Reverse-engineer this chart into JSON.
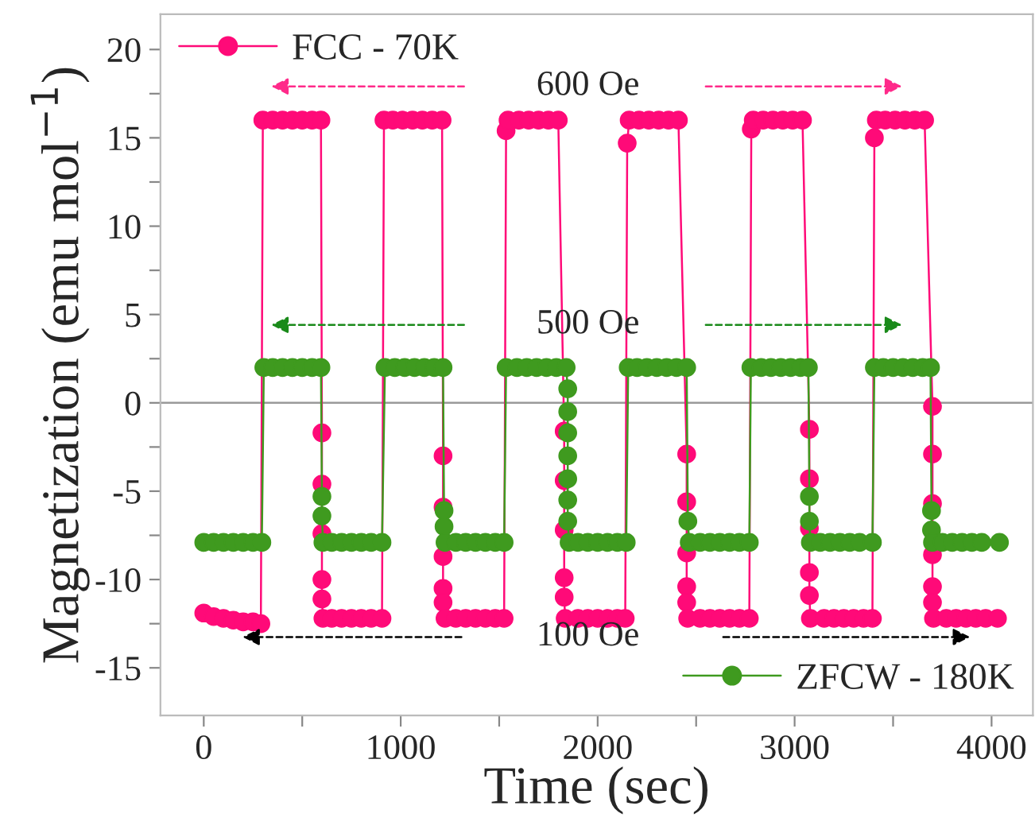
{
  "chart_data": {
    "type": "line",
    "xlabel": "Time (sec)",
    "ylabel": "Magnetization (emu mol$^{−1}$)",
    "xlim": [
      -220,
      4210
    ],
    "ylim": [
      -17.7,
      22
    ],
    "xticks": [
      0,
      {
        "value": 500,
        "label": null
      },
      1000,
      {
        "value": 1500,
        "label": null
      },
      2000,
      {
        "value": 2500,
        "label": null
      },
      3000,
      {
        "value": 3500,
        "label": null
      },
      4000
    ],
    "yticks": [
      -15,
      {
        "value": -12.5,
        "label": null
      },
      -10,
      {
        "value": -7.5,
        "label": null
      },
      -5,
      {
        "value": -2.5,
        "label": null
      },
      0,
      {
        "value": 2.5,
        "label": null
      },
      5,
      {
        "value": 7.5,
        "label": null
      },
      10,
      {
        "value": 12.5,
        "label": null
      },
      15,
      {
        "value": 17.5,
        "label": null
      },
      20
    ],
    "grid": false,
    "marker": "circle",
    "line_style": "solid",
    "legend": "top left",
    "ref_lines": [
      {
        "axis": "y",
        "value": 0,
        "color": "#9a9a9a"
      }
    ],
    "annotations": [
      "600 Oe",
      "500 Oe",
      "100 Oe"
    ],
    "series": [
      {
        "name": "FCC - 70K",
        "color": "#ff0a78",
        "x": [
          0,
          50,
          100,
          150,
          200,
          250,
          290,
          300,
          350,
          400,
          450,
          500,
          550,
          595,
          600,
          600,
          600,
          600,
          600,
          605,
          650,
          700,
          750,
          800,
          850,
          905,
          915,
          960,
          1010,
          1060,
          1110,
          1160,
          1210,
          1215,
          1215,
          1215,
          1215,
          1215,
          1225,
          1280,
          1330,
          1380,
          1430,
          1480,
          1525,
          1535,
          1545,
          1600,
          1650,
          1700,
          1750,
          1800,
          1830,
          1830,
          1830,
          1830,
          1830,
          1835,
          1900,
          1950,
          2000,
          2050,
          2100,
          2140,
          2150,
          2160,
          2210,
          2260,
          2310,
          2360,
          2410,
          2452,
          2452,
          2452,
          2452,
          2452,
          2457,
          2520,
          2570,
          2620,
          2670,
          2720,
          2770,
          2780,
          2790,
          2840,
          2890,
          2940,
          2990,
          3040,
          3075,
          3075,
          3075,
          3075,
          3075,
          3080,
          3150,
          3200,
          3250,
          3300,
          3350,
          3395,
          3405,
          3415,
          3460,
          3510,
          3560,
          3610,
          3660,
          3700,
          3700,
          3700,
          3700,
          3700,
          3700,
          3705,
          3770,
          3820,
          3870,
          3920,
          3970,
          4030
        ],
        "values": [
          -11.9,
          -12.1,
          -12.2,
          -12.3,
          -12.4,
          -12.4,
          -12.5,
          16,
          16,
          16,
          16,
          16,
          16,
          16,
          -1.7,
          -4.6,
          -7.4,
          -10,
          -11.1,
          -12.2,
          -12.2,
          -12.2,
          -12.2,
          -12.2,
          -12.2,
          -12.2,
          16,
          16,
          16,
          16,
          16,
          16,
          16,
          -3,
          -5.9,
          -8.7,
          -10.5,
          -11.3,
          -12.2,
          -12.2,
          -12.2,
          -12.2,
          -12.2,
          -12.2,
          -12.2,
          15.4,
          16,
          16,
          16,
          16,
          16,
          16,
          -1.6,
          -4.4,
          -7.2,
          -9.9,
          -11,
          -12.2,
          -12.2,
          -12.2,
          -12.2,
          -12.2,
          -12.2,
          -12.2,
          14.7,
          16,
          16,
          16,
          16,
          16,
          16,
          -2.9,
          -5.6,
          -8.5,
          -10.4,
          -11.3,
          -12.2,
          -12.2,
          -12.2,
          -12.2,
          -12.2,
          -12.2,
          -12.2,
          15.5,
          16,
          16,
          16,
          16,
          16,
          16,
          -1.5,
          -4.3,
          -7.1,
          -9.6,
          -10.9,
          -12.2,
          -12.2,
          -12.2,
          -12.2,
          -12.2,
          -12.2,
          -12.2,
          15,
          16,
          16,
          16,
          16,
          16,
          16,
          -0.2,
          -2.9,
          -5.7,
          -8.6,
          -10.4,
          -11.3,
          -12.2,
          -12.2,
          -12.2,
          -12.2,
          -12.2,
          -12.2,
          -12.2
        ]
      },
      {
        "name": "ZFCW - 180K",
        "color": "#3f9a1f",
        "x": [
          0,
          50,
          100,
          150,
          200,
          250,
          295,
          305,
          350,
          400,
          450,
          500,
          550,
          595,
          600,
          600,
          605,
          650,
          700,
          750,
          800,
          850,
          905,
          920,
          970,
          1020,
          1070,
          1120,
          1170,
          1215,
          1220,
          1220,
          1225,
          1280,
          1330,
          1380,
          1430,
          1480,
          1525,
          1535,
          1590,
          1640,
          1690,
          1740,
          1790,
          1840,
          1848,
          1848,
          1848,
          1848,
          1848,
          1848,
          1848,
          1855,
          1900,
          1950,
          2000,
          2050,
          2100,
          2145,
          2155,
          2200,
          2250,
          2300,
          2350,
          2400,
          2452,
          2458,
          2465,
          2520,
          2570,
          2620,
          2670,
          2720,
          2770,
          2778,
          2830,
          2880,
          2930,
          2980,
          3030,
          3070,
          3075,
          3075,
          3080,
          3130,
          3180,
          3230,
          3280,
          3330,
          3395,
          3405,
          3450,
          3500,
          3550,
          3600,
          3650,
          3690,
          3695,
          3695,
          3700,
          3750,
          3800,
          3850,
          3900,
          3950,
          4040
        ],
        "values": [
          -7.9,
          -7.9,
          -7.9,
          -7.9,
          -7.9,
          -7.9,
          -7.9,
          2,
          2,
          2,
          2,
          2,
          2,
          2,
          -5.3,
          -6.4,
          -7.9,
          -7.9,
          -7.9,
          -7.9,
          -7.9,
          -7.9,
          -7.9,
          2,
          2,
          2,
          2,
          2,
          2,
          2,
          -6.1,
          -7,
          -7.9,
          -7.9,
          -7.9,
          -7.9,
          -7.9,
          -7.9,
          -7.9,
          2,
          2,
          2,
          2,
          2,
          2,
          2,
          0.8,
          -0.5,
          -1.7,
          -3,
          -4.3,
          -5.5,
          -6.7,
          -7.9,
          -7.9,
          -7.9,
          -7.9,
          -7.9,
          -7.9,
          -7.9,
          2,
          2,
          2,
          2,
          2,
          2,
          2,
          -6.7,
          -7.9,
          -7.9,
          -7.9,
          -7.9,
          -7.9,
          -7.9,
          -7.9,
          2,
          2,
          2,
          2,
          2,
          2,
          2,
          -5.3,
          -6.7,
          -7.9,
          -7.9,
          -7.9,
          -7.9,
          -7.9,
          -7.9,
          -7.9,
          2,
          2,
          2,
          2,
          2,
          2,
          2,
          -6.1,
          -7.2,
          -7.9,
          -7.9,
          -7.9,
          -7.9,
          -7.9,
          -7.9,
          -7.9
        ]
      }
    ]
  }
}
